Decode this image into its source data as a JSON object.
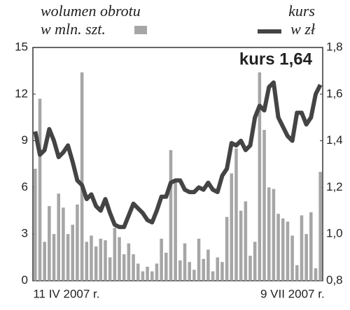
{
  "chart_data": {
    "type": "bar-line",
    "annotation": "kurs 1,64",
    "categories": [
      "11 IV 2007 r.",
      null,
      null,
      null,
      null,
      null,
      null,
      null,
      null,
      null,
      null,
      null,
      null,
      null,
      null,
      null,
      null,
      null,
      null,
      null,
      null,
      null,
      null,
      null,
      null,
      null,
      null,
      null,
      null,
      null,
      null,
      null,
      null,
      null,
      null,
      null,
      null,
      null,
      null,
      null,
      null,
      null,
      null,
      null,
      null,
      null,
      null,
      null,
      null,
      null,
      null,
      null,
      null,
      null,
      null,
      null,
      null,
      null,
      null,
      null,
      null,
      "9 VII 2007 r."
    ],
    "series": [
      {
        "name": "wolumen obrotu",
        "unit": "w mln. szt.",
        "type": "bar",
        "color": "#a6a6a6",
        "axis": "y",
        "values": [
          7.2,
          11.7,
          2.5,
          4.8,
          3.0,
          5.6,
          4.7,
          3.0,
          3.6,
          4.9,
          13.4,
          2.5,
          2.9,
          2.2,
          2.7,
          2.6,
          1.5,
          3.4,
          2.8,
          1.7,
          2.4,
          1.7,
          1.1,
          0.6,
          0.9,
          0.6,
          1.1,
          2.7,
          1.8,
          8.4,
          6.4,
          1.3,
          2.4,
          1.2,
          0.7,
          2.7,
          1.4,
          2.0,
          0.6,
          1.5,
          1.2,
          4.1,
          6.9,
          8.5,
          4.5,
          5.1,
          1.6,
          2.5,
          13.4,
          9.7,
          6.0,
          5.9,
          4.3,
          4.0,
          3.8,
          2.9,
          1.0,
          4.2,
          3.0,
          4.4,
          0.8,
          7.0
        ]
      },
      {
        "name": "kurs",
        "unit": "w zł",
        "type": "line",
        "color": "#444444",
        "axis": "y2",
        "values": [
          1.44,
          1.34,
          1.36,
          1.45,
          1.4,
          1.33,
          1.35,
          1.38,
          1.31,
          1.23,
          1.21,
          1.15,
          1.17,
          1.12,
          1.1,
          1.15,
          1.09,
          1.04,
          1.03,
          1.03,
          1.08,
          1.13,
          1.11,
          1.09,
          1.06,
          1.05,
          1.1,
          1.16,
          1.16,
          1.22,
          1.23,
          1.23,
          1.19,
          1.18,
          1.18,
          1.2,
          1.19,
          1.22,
          1.19,
          1.18,
          1.25,
          1.28,
          1.39,
          1.38,
          1.4,
          1.36,
          1.38,
          1.5,
          1.55,
          1.53,
          1.63,
          1.65,
          1.5,
          1.46,
          1.42,
          1.4,
          1.52,
          1.52,
          1.47,
          1.5,
          1.6,
          1.64
        ]
      }
    ],
    "ylim": [
      0,
      15
    ],
    "yticks": [
      0,
      3,
      6,
      9,
      12,
      15
    ],
    "y2lim": [
      0.8,
      1.8
    ],
    "y2ticks": [
      {
        "value": 0.8,
        "label": "0,8"
      },
      {
        "value": 1.0,
        "label": "1,0"
      },
      {
        "value": 1.2,
        "label": "1,2"
      },
      {
        "value": 1.4,
        "label": "1,4"
      },
      {
        "value": 1.6,
        "label": "1,6"
      },
      {
        "value": 1.8,
        "label": "1,8"
      }
    ],
    "grid": false
  }
}
